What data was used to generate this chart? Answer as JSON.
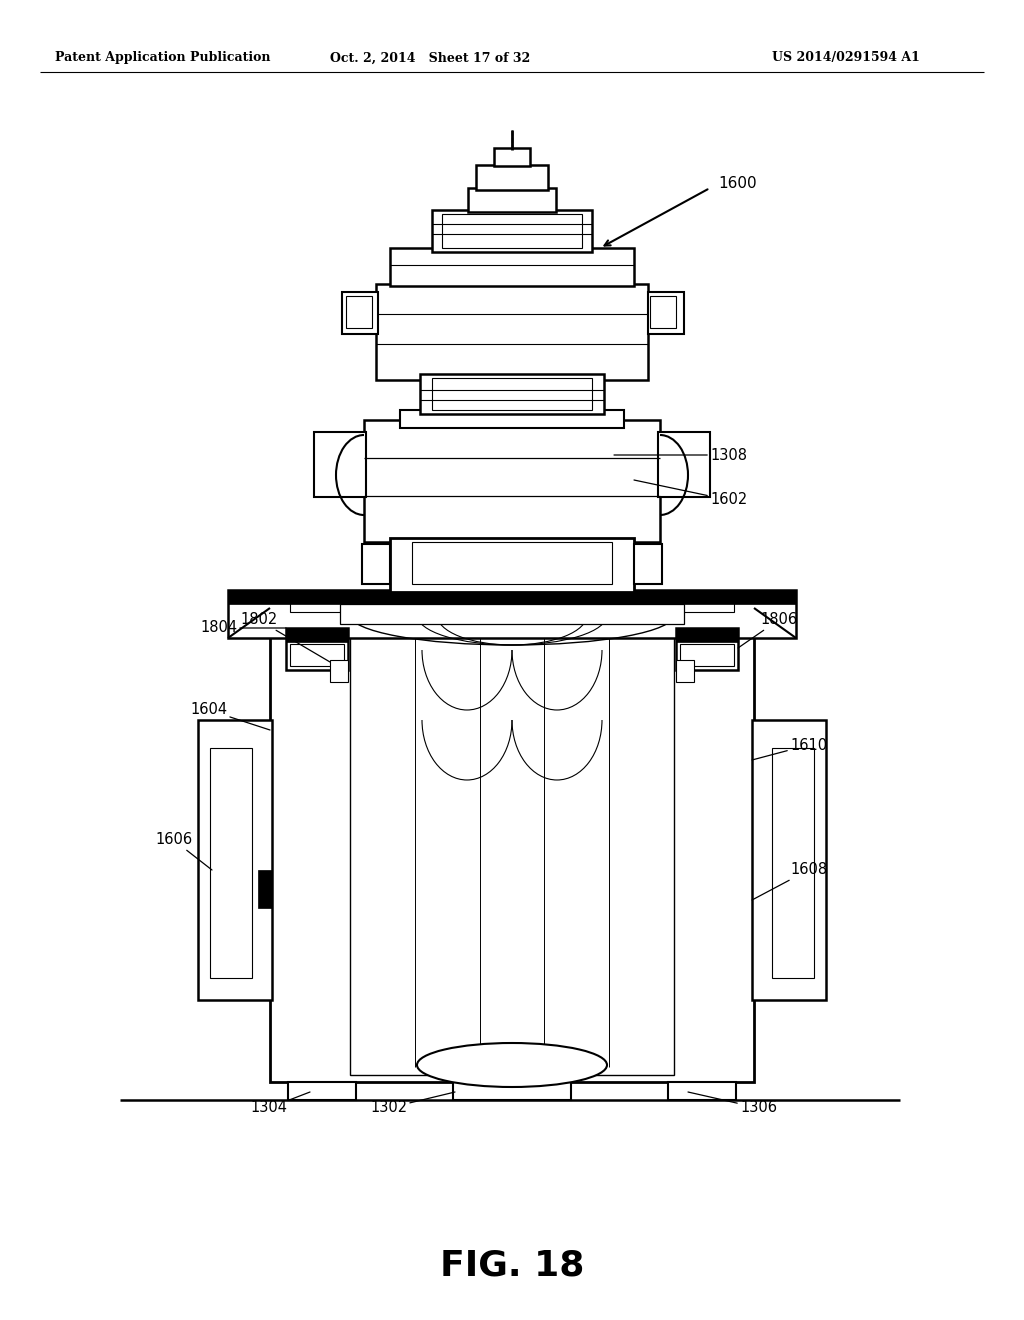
{
  "header_left": "Patent Application Publication",
  "header_center": "Oct. 2, 2014   Sheet 17 of 32",
  "header_right": "US 2014/0291594 A1",
  "figure_label": "FIG. 18",
  "bg_color": "#ffffff"
}
